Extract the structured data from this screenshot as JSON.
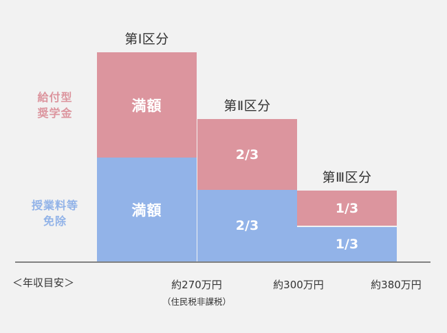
{
  "headers": {
    "tier1": "第Ⅰ区分",
    "tier2": "第Ⅱ区分",
    "tier3": "第Ⅲ区分"
  },
  "side_labels": {
    "grant": [
      "給付型",
      "奨学金"
    ],
    "waiver": [
      "授業料等",
      "免除"
    ]
  },
  "blocks": {
    "tier1_grant": "満額",
    "tier1_waiver": "満額",
    "tier2_grant": "2/3",
    "tier2_waiver": "2/3",
    "tier3_grant": "1/3",
    "tier3_waiver": "1/3"
  },
  "income": {
    "axis_label": "＜年収目安＞",
    "tier1": "約270万円",
    "tier1_note": "（住民税非課税）",
    "tier2": "約300万円",
    "tier3": "約380万円"
  },
  "colors": {
    "grant": "#dc959e",
    "waiver": "#92b3e8",
    "background": "#f2f2f2"
  }
}
